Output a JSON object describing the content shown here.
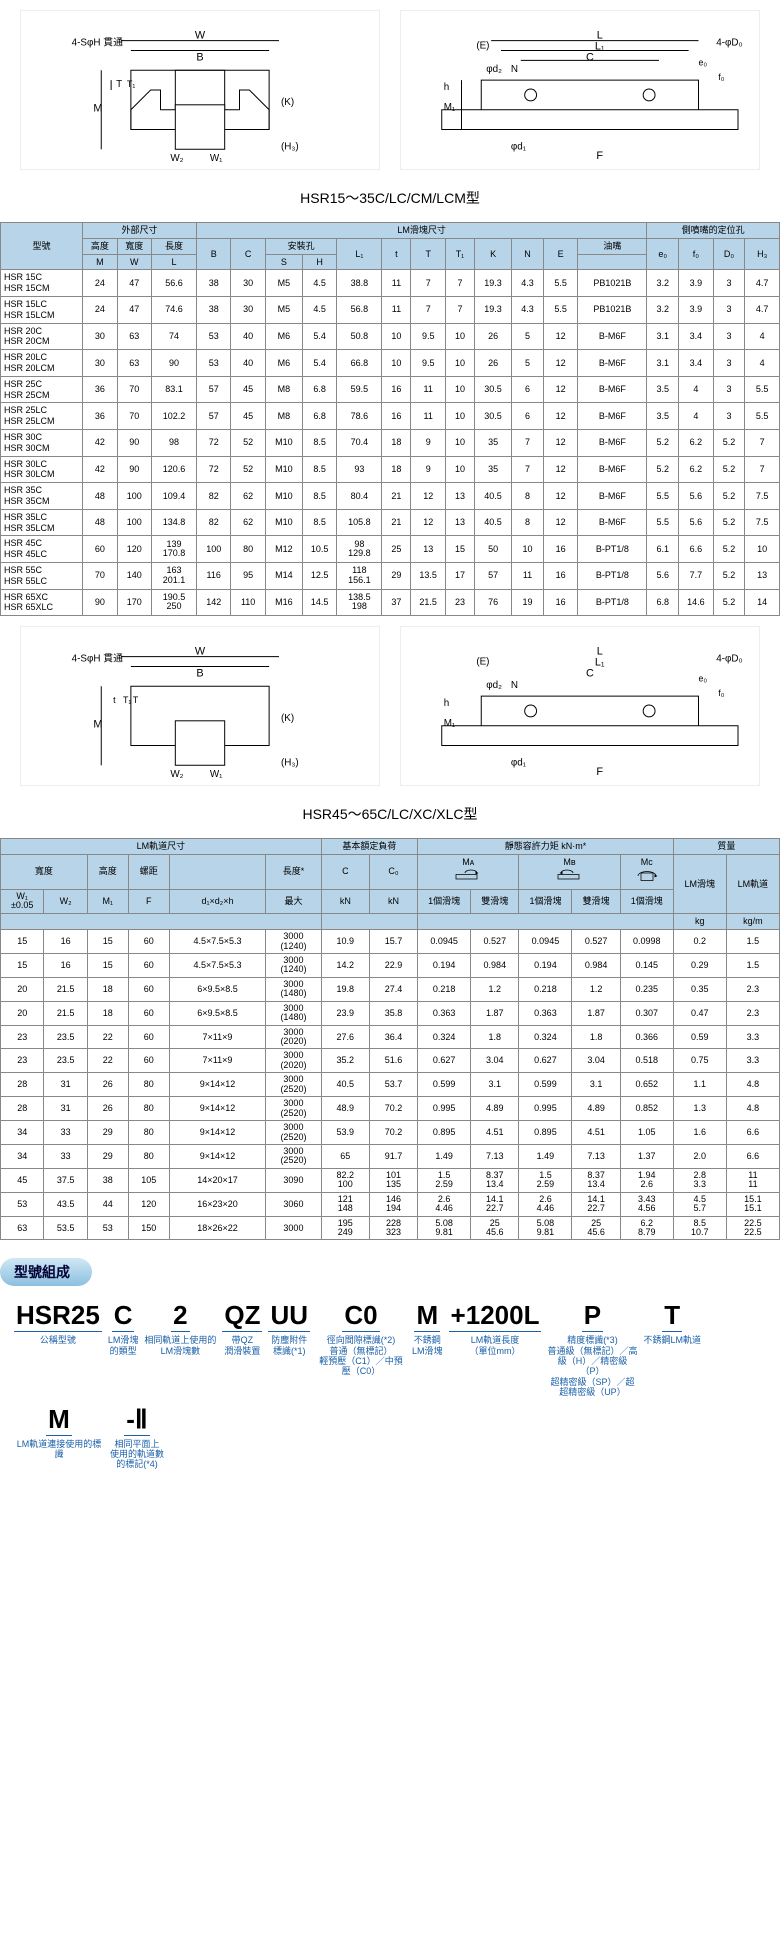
{
  "diagram1": {
    "caption": "HSR15～35C/LC/CM/LCM型",
    "left_labels": [
      "W",
      "B",
      "4-SφH 貫通",
      "T",
      "T₁",
      "M",
      "(K)",
      "W₂",
      "W₁",
      "(H₃)"
    ],
    "right_labels": [
      "(E)",
      "L",
      "L₁",
      "C",
      "4-φD₀",
      "e₀",
      "f₀",
      "φd₂",
      "N",
      "h",
      "M₁",
      "φd₁",
      "F"
    ]
  },
  "diagram2": {
    "caption": "HSR45～65C/LC/XC/XLC型",
    "left_labels": [
      "W",
      "B",
      "4-SφH 貫通",
      "t",
      "T₁",
      "T",
      "M",
      "(K)",
      "W₂",
      "W₁",
      "(H₃)"
    ],
    "right_labels": [
      "(E)",
      "L",
      "L₁",
      "C",
      "4-φD₀",
      "e₀",
      "f₀",
      "φd₂",
      "N",
      "h",
      "M₁",
      "φd₁",
      "F"
    ]
  },
  "table1": {
    "group_headers": [
      "外部尺寸",
      "LM滑塊尺寸",
      "側噴嘴的定位孔"
    ],
    "mid_headers": [
      "型號",
      "高度",
      "寬度",
      "長度",
      "",
      "",
      "安裝孔",
      "",
      "",
      "",
      "",
      "",
      "",
      "",
      "油嘴",
      "",
      "",
      "",
      ""
    ],
    "sub_headers": [
      "",
      "M",
      "W",
      "L",
      "B",
      "C",
      "S",
      "H",
      "L₁",
      "t",
      "T",
      "T₁",
      "K",
      "N",
      "E",
      "",
      "e₀",
      "f₀",
      "D₀",
      "H₃"
    ],
    "rows": [
      {
        "label": "HSR 15C\nHSR 15CM",
        "v": [
          "24",
          "47",
          "56.6",
          "38",
          "30",
          "M5",
          "4.5",
          "38.8",
          "11",
          "7",
          "7",
          "19.3",
          "4.3",
          "5.5",
          "PB1021B",
          "3.2",
          "3.9",
          "3",
          "4.7"
        ]
      },
      {
        "label": "HSR 15LC\nHSR 15LCM",
        "v": [
          "24",
          "47",
          "74.6",
          "38",
          "30",
          "M5",
          "4.5",
          "56.8",
          "11",
          "7",
          "7",
          "19.3",
          "4.3",
          "5.5",
          "PB1021B",
          "3.2",
          "3.9",
          "3",
          "4.7"
        ]
      },
      {
        "label": "HSR 20C\nHSR 20CM",
        "v": [
          "30",
          "63",
          "74",
          "53",
          "40",
          "M6",
          "5.4",
          "50.8",
          "10",
          "9.5",
          "10",
          "26",
          "5",
          "12",
          "B-M6F",
          "3.1",
          "3.4",
          "3",
          "4"
        ]
      },
      {
        "label": "HSR 20LC\nHSR 20LCM",
        "v": [
          "30",
          "63",
          "90",
          "53",
          "40",
          "M6",
          "5.4",
          "66.8",
          "10",
          "9.5",
          "10",
          "26",
          "5",
          "12",
          "B-M6F",
          "3.1",
          "3.4",
          "3",
          "4"
        ]
      },
      {
        "label": "HSR 25C\nHSR 25CM",
        "v": [
          "36",
          "70",
          "83.1",
          "57",
          "45",
          "M8",
          "6.8",
          "59.5",
          "16",
          "11",
          "10",
          "30.5",
          "6",
          "12",
          "B-M6F",
          "3.5",
          "4",
          "3",
          "5.5"
        ]
      },
      {
        "label": "HSR 25LC\nHSR 25LCM",
        "v": [
          "36",
          "70",
          "102.2",
          "57",
          "45",
          "M8",
          "6.8",
          "78.6",
          "16",
          "11",
          "10",
          "30.5",
          "6",
          "12",
          "B-M6F",
          "3.5",
          "4",
          "3",
          "5.5"
        ]
      },
      {
        "label": "HSR 30C\nHSR 30CM",
        "v": [
          "42",
          "90",
          "98",
          "72",
          "52",
          "M10",
          "8.5",
          "70.4",
          "18",
          "9",
          "10",
          "35",
          "7",
          "12",
          "B-M6F",
          "5.2",
          "6.2",
          "5.2",
          "7"
        ]
      },
      {
        "label": "HSR 30LC\nHSR 30LCM",
        "v": [
          "42",
          "90",
          "120.6",
          "72",
          "52",
          "M10",
          "8.5",
          "93",
          "18",
          "9",
          "10",
          "35",
          "7",
          "12",
          "B-M6F",
          "5.2",
          "6.2",
          "5.2",
          "7"
        ]
      },
      {
        "label": "HSR 35C\nHSR 35CM",
        "v": [
          "48",
          "100",
          "109.4",
          "82",
          "62",
          "M10",
          "8.5",
          "80.4",
          "21",
          "12",
          "13",
          "40.5",
          "8",
          "12",
          "B-M6F",
          "5.5",
          "5.6",
          "5.2",
          "7.5"
        ]
      },
      {
        "label": "HSR 35LC\nHSR 35LCM",
        "v": [
          "48",
          "100",
          "134.8",
          "82",
          "62",
          "M10",
          "8.5",
          "105.8",
          "21",
          "12",
          "13",
          "40.5",
          "8",
          "12",
          "B-M6F",
          "5.5",
          "5.6",
          "5.2",
          "7.5"
        ]
      },
      {
        "label": "HSR 45C\nHSR 45LC",
        "v": [
          "60",
          "120",
          "139\n170.8",
          "100",
          "80",
          "M12",
          "10.5",
          "98\n129.8",
          "25",
          "13",
          "15",
          "50",
          "10",
          "16",
          "B-PT1/8",
          "6.1",
          "6.6",
          "5.2",
          "10"
        ]
      },
      {
        "label": "HSR 55C\nHSR 55LC",
        "v": [
          "70",
          "140",
          "163\n201.1",
          "116",
          "95",
          "M14",
          "12.5",
          "118\n156.1",
          "29",
          "13.5",
          "17",
          "57",
          "11",
          "16",
          "B-PT1/8",
          "5.6",
          "7.7",
          "5.2",
          "13"
        ]
      },
      {
        "label": "HSR 65XC\nHSR 65XLC",
        "v": [
          "90",
          "170",
          "190.5\n250",
          "142",
          "110",
          "M16",
          "14.5",
          "138.5\n198",
          "37",
          "21.5",
          "23",
          "76",
          "19",
          "16",
          "B-PT1/8",
          "6.8",
          "14.6",
          "5.2",
          "14"
        ]
      }
    ]
  },
  "table2": {
    "group_headers": [
      "LM軌道尺寸",
      "基本額定負荷",
      "靜態容許力矩 kN·m*",
      "質量"
    ],
    "mid_headers": [
      "寬度",
      "",
      "高度",
      "螺距",
      "",
      "長度*",
      "C",
      "C₀",
      "Mᴀ",
      "Mʙ",
      "Mᴄ",
      "LM滑塊",
      "LM軌道"
    ],
    "sub_headers": [
      "W₁\n±0.05",
      "W₂",
      "M₁",
      "F",
      "d₁×d₂×h",
      "最大",
      "kN",
      "kN",
      "1個滑塊",
      "雙滑塊",
      "1個滑塊",
      "雙滑塊",
      "1個滑塊",
      "kg",
      "kg/m"
    ],
    "rows": [
      {
        "v": [
          "15",
          "16",
          "15",
          "60",
          "4.5×7.5×5.3",
          "3000\n(1240)",
          "10.9",
          "15.7",
          "0.0945",
          "0.527",
          "0.0945",
          "0.527",
          "0.0998",
          "0.2",
          "1.5"
        ]
      },
      {
        "v": [
          "15",
          "16",
          "15",
          "60",
          "4.5×7.5×5.3",
          "3000\n(1240)",
          "14.2",
          "22.9",
          "0.194",
          "0.984",
          "0.194",
          "0.984",
          "0.145",
          "0.29",
          "1.5"
        ]
      },
      {
        "v": [
          "20",
          "21.5",
          "18",
          "60",
          "6×9.5×8.5",
          "3000\n(1480)",
          "19.8",
          "27.4",
          "0.218",
          "1.2",
          "0.218",
          "1.2",
          "0.235",
          "0.35",
          "2.3"
        ]
      },
      {
        "v": [
          "20",
          "21.5",
          "18",
          "60",
          "6×9.5×8.5",
          "3000\n(1480)",
          "23.9",
          "35.8",
          "0.363",
          "1.87",
          "0.363",
          "1.87",
          "0.307",
          "0.47",
          "2.3"
        ]
      },
      {
        "v": [
          "23",
          "23.5",
          "22",
          "60",
          "7×11×9",
          "3000\n(2020)",
          "27.6",
          "36.4",
          "0.324",
          "1.8",
          "0.324",
          "1.8",
          "0.366",
          "0.59",
          "3.3"
        ]
      },
      {
        "v": [
          "23",
          "23.5",
          "22",
          "60",
          "7×11×9",
          "3000\n(2020)",
          "35.2",
          "51.6",
          "0.627",
          "3.04",
          "0.627",
          "3.04",
          "0.518",
          "0.75",
          "3.3"
        ]
      },
      {
        "v": [
          "28",
          "31",
          "26",
          "80",
          "9×14×12",
          "3000\n(2520)",
          "40.5",
          "53.7",
          "0.599",
          "3.1",
          "0.599",
          "3.1",
          "0.652",
          "1.1",
          "4.8"
        ]
      },
      {
        "v": [
          "28",
          "31",
          "26",
          "80",
          "9×14×12",
          "3000\n(2520)",
          "48.9",
          "70.2",
          "0.995",
          "4.89",
          "0.995",
          "4.89",
          "0.852",
          "1.3",
          "4.8"
        ]
      },
      {
        "v": [
          "34",
          "33",
          "29",
          "80",
          "9×14×12",
          "3000\n(2520)",
          "53.9",
          "70.2",
          "0.895",
          "4.51",
          "0.895",
          "4.51",
          "1.05",
          "1.6",
          "6.6"
        ]
      },
      {
        "v": [
          "34",
          "33",
          "29",
          "80",
          "9×14×12",
          "3000\n(2520)",
          "65",
          "91.7",
          "1.49",
          "7.13",
          "1.49",
          "7.13",
          "1.37",
          "2.0",
          "6.6"
        ]
      },
      {
        "v": [
          "45",
          "37.5",
          "38",
          "105",
          "14×20×17",
          "3090",
          "82.2\n100",
          "101\n135",
          "1.5\n2.59",
          "8.37\n13.4",
          "1.5\n2.59",
          "8.37\n13.4",
          "1.94\n2.6",
          "2.8\n3.3",
          "11\n11"
        ]
      },
      {
        "v": [
          "53",
          "43.5",
          "44",
          "120",
          "16×23×20",
          "3060",
          "121\n148",
          "146\n194",
          "2.6\n4.46",
          "14.1\n22.7",
          "2.6\n4.46",
          "14.1\n22.7",
          "3.43\n4.56",
          "4.5\n5.7",
          "15.1\n15.1"
        ]
      },
      {
        "v": [
          "63",
          "53.5",
          "53",
          "150",
          "18×26×22",
          "3000",
          "195\n249",
          "228\n323",
          "5.08\n9.81",
          "25\n45.6",
          "5.08\n9.81",
          "25\n45.6",
          "6.2\n8.79",
          "8.5\n10.7",
          "22.5\n22.5"
        ]
      }
    ]
  },
  "model": {
    "section_title": "型號組成",
    "parts": [
      {
        "big": "HSR25",
        "label": "公稱型號"
      },
      {
        "big": "C",
        "label": "LM滑塊\n的類型"
      },
      {
        "big": "2",
        "label": "相同軌道上使用的\nLM滑塊數"
      },
      {
        "big": "QZ",
        "label": "帶QZ\n潤滑裝置"
      },
      {
        "big": "UU",
        "label": "防塵附件\n標識(*1)"
      },
      {
        "big": "C0",
        "label": "徑向間隙標識(*2)\n普通（無標記）\n輕預壓（C1）／中預壓（C0）"
      },
      {
        "big": "M",
        "label": "不銹鋼\nLM滑塊"
      },
      {
        "big": "+1200L",
        "label": "LM軌道長度\n（單位mm）"
      },
      {
        "big": "P",
        "label": "精度標識(*3)\n普通級（無標記）／高級（H）／精密級（P）\n超精密級（SP）／超超精密級（UP）"
      },
      {
        "big": "T",
        "label": "不銹鋼LM軌道"
      },
      {
        "big": "M",
        "label": "LM軌道連接使用的標識"
      },
      {
        "big": "-Ⅱ",
        "label": "相同平面上\n使用的軌道數\n的標記(*4)"
      }
    ]
  },
  "colors": {
    "header_bg": "#b8d4e8",
    "pill_grad_top": "#d0e8f5",
    "pill_grad_bot": "#8cc0e0",
    "link_blue": "#1a5fa8"
  }
}
